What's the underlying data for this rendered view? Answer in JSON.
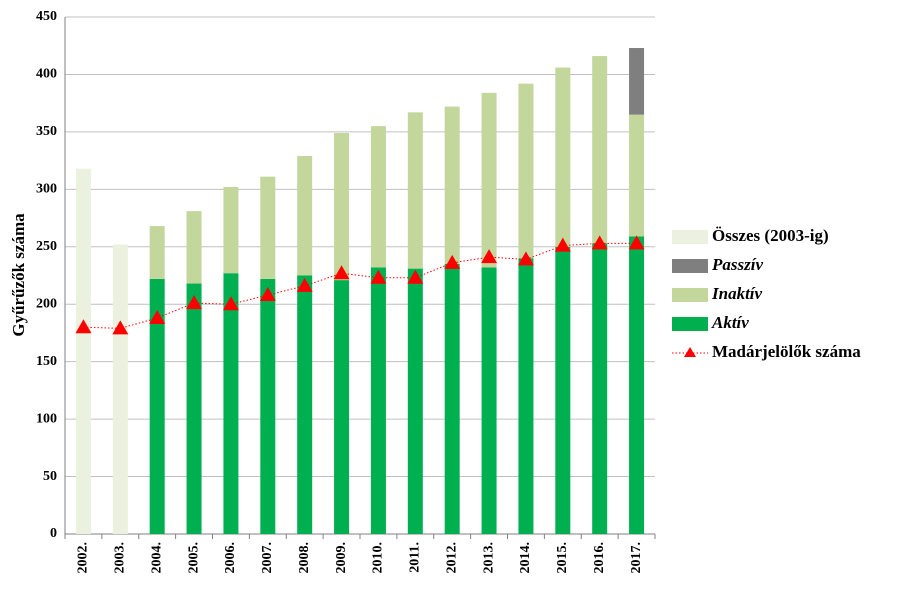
{
  "chart_data": {
    "type": "bar",
    "y_label": "Gyűrűzők száma",
    "categories": [
      "2002.",
      "2003.",
      "2004.",
      "2005.",
      "2006.",
      "2007.",
      "2008.",
      "2009.",
      "2010.",
      "2011.",
      "2012.",
      "2013.",
      "2014.",
      "2015.",
      "2016.",
      "2017."
    ],
    "series": [
      {
        "name": "Aktív",
        "type": "bar",
        "color": "#00b050",
        "values": [
          null,
          null,
          222,
          218,
          227,
          222,
          225,
          221,
          232,
          231,
          235,
          232,
          240,
          250,
          253,
          259
        ]
      },
      {
        "name": "Inaktív",
        "type": "bar",
        "color": "#c3d69b",
        "values": [
          null,
          null,
          46,
          63,
          75,
          89,
          104,
          128,
          123,
          136,
          137,
          152,
          152,
          156,
          163,
          106
        ]
      },
      {
        "name": "Passzív",
        "type": "bar",
        "color": "#7f7f7f",
        "values": [
          null,
          null,
          null,
          null,
          null,
          null,
          null,
          null,
          null,
          null,
          null,
          null,
          null,
          null,
          null,
          58
        ]
      },
      {
        "name": "Összes (2003-ig)",
        "type": "bar",
        "color": "#ebf1de",
        "values": [
          318,
          252,
          null,
          null,
          null,
          null,
          null,
          null,
          null,
          null,
          null,
          null,
          null,
          null,
          null,
          null
        ]
      },
      {
        "name": "Madárjelölők száma",
        "type": "line",
        "color": "#ff0000",
        "values": [
          180,
          179,
          188,
          201,
          200,
          208,
          216,
          227,
          223,
          223,
          236,
          241,
          239,
          251,
          253,
          253
        ]
      }
    ],
    "ylim": [
      0,
      450
    ],
    "yticks": [
      0,
      50,
      100,
      150,
      200,
      250,
      300,
      350,
      400,
      450
    ],
    "grid": true,
    "stacked": true,
    "legend": "right"
  }
}
